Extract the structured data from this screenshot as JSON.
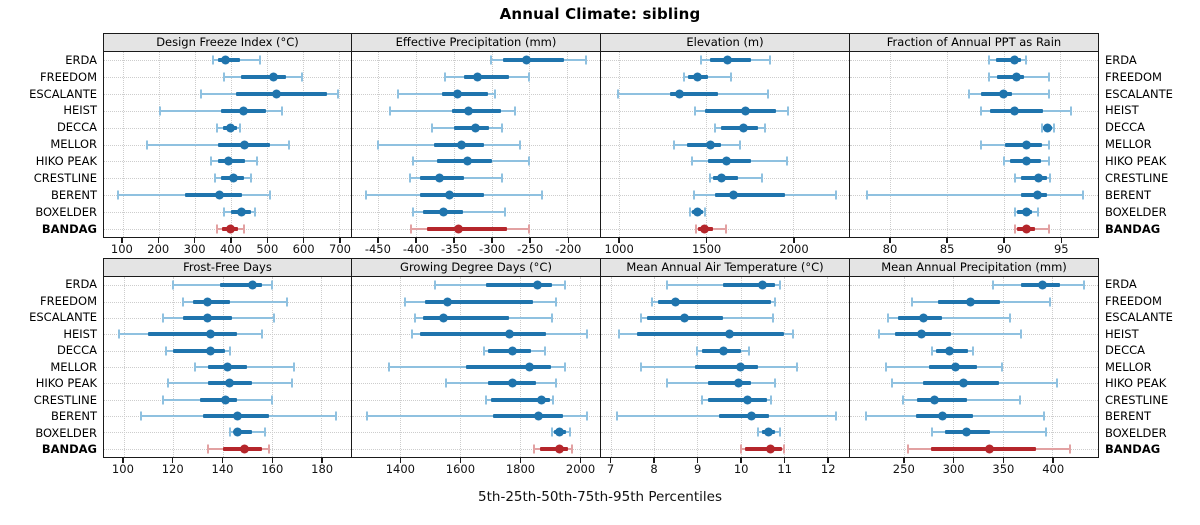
{
  "title": "Annual Climate: sibling",
  "caption": "5th-25th-50th-75th-95th Percentiles",
  "sites": [
    "ERDA",
    "FREEDOM",
    "ESCALANTE",
    "HEIST",
    "DECCA",
    "MELLOR",
    "HIKO PEAK",
    "CRESTLINE",
    "BERENT",
    "BOXELDER",
    "BANDAG"
  ],
  "highlight_site": "BANDAG",
  "colors": {
    "series_blue": "#1f74ad",
    "series_blue_light": "#8fc1e0",
    "highlight_red": "#b5262b",
    "highlight_red_light": "#e2a1a2",
    "grid": "#cdcdcd",
    "strip_bg": "#e4e4e4",
    "panel_border": "#1a1a1a"
  },
  "chart_data": {
    "type": "dot-interval",
    "subtype": "trellis 2x4, horizontal percentile intervals per site",
    "percentile_levels": [
      5,
      25,
      50,
      75,
      95
    ],
    "legend_position": "none",
    "grid": "dotted",
    "panels": [
      {
        "id": "design-freeze-index",
        "title": "Design Freeze Index (°C)",
        "row": "top",
        "xlim": [
          48,
          733
        ],
        "ticks": [
          100,
          200,
          300,
          400,
          500,
          600,
          700
        ],
        "values": [
          [
            350,
            364,
            385,
            424,
            481
          ],
          [
            381,
            428,
            518,
            554,
            596
          ],
          [
            318,
            415,
            527,
            667,
            696
          ],
          [
            204,
            373,
            435,
            497,
            541
          ],
          [
            360,
            378,
            398,
            416,
            426
          ],
          [
            167,
            364,
            438,
            508,
            561
          ],
          [
            345,
            365,
            392,
            438,
            472
          ],
          [
            357,
            372,
            408,
            436,
            456
          ],
          [
            87,
            273,
            369,
            430,
            508
          ],
          [
            380,
            400,
            428,
            455,
            467
          ],
          [
            362,
            375,
            399,
            421,
            436
          ]
        ]
      },
      {
        "id": "effective-precipitation",
        "title": "Effective Precipitation (mm)",
        "row": "top",
        "xlim": [
          -484,
          -157
        ],
        "ticks": [
          -450,
          -400,
          -350,
          -300,
          -250,
          -200
        ],
        "values": [
          [
            -301,
            -285,
            -254,
            -205,
            -175
          ],
          [
            -361,
            -336,
            -319,
            -277,
            -250
          ],
          [
            -423,
            -365,
            -345,
            -305,
            -296
          ],
          [
            -434,
            -352,
            -330,
            -288,
            -269
          ],
          [
            -378,
            -350,
            -321,
            -303,
            -286
          ],
          [
            -450,
            -376,
            -339,
            -310,
            -263
          ],
          [
            -403,
            -372,
            -332,
            -299,
            -250
          ],
          [
            -407,
            -394,
            -369,
            -336,
            -286
          ],
          [
            -466,
            -394,
            -356,
            -310,
            -233
          ],
          [
            -403,
            -391,
            -364,
            -338,
            -282
          ],
          [
            -406,
            -385,
            -343,
            -279,
            -250
          ]
        ]
      },
      {
        "id": "elevation",
        "title": "Elevation (m)",
        "row": "top",
        "xlim": [
          896,
          2320
        ],
        "ticks": [
          1000,
          1500,
          2000
        ],
        "values": [
          [
            1471,
            1523,
            1625,
            1760,
            1867
          ],
          [
            1371,
            1395,
            1452,
            1510,
            1641
          ],
          [
            992,
            1295,
            1346,
            1568,
            1853
          ],
          [
            1436,
            1495,
            1728,
            1900,
            1969
          ],
          [
            1548,
            1587,
            1712,
            1799,
            1838
          ],
          [
            1317,
            1390,
            1525,
            1587,
            1693
          ],
          [
            1419,
            1510,
            1616,
            1760,
            1963
          ],
          [
            1519,
            1539,
            1587,
            1683,
            1818
          ],
          [
            1432,
            1550,
            1654,
            1950,
            2243
          ],
          [
            1405,
            1420,
            1448,
            1480,
            1495
          ],
          [
            1442,
            1452,
            1490,
            1539,
            1616
          ]
        ]
      },
      {
        "id": "fraction-ppt-rain",
        "title": "Fraction of Annual PPT as Rain",
        "row": "top",
        "xlim": [
          76.5,
          98.3
        ],
        "ticks": [
          80,
          85,
          90,
          95
        ],
        "values": [
          [
            88.7,
            89.3,
            91.0,
            91.5,
            92.0
          ],
          [
            88.7,
            89.4,
            91.1,
            91.8,
            94.0
          ],
          [
            87.0,
            88.0,
            90.0,
            90.7,
            94.0
          ],
          [
            88.0,
            88.8,
            91.0,
            93.5,
            95.9
          ],
          [
            93.4,
            93.5,
            93.9,
            94.3,
            94.4
          ],
          [
            88.0,
            90.1,
            92.0,
            93.4,
            94.0
          ],
          [
            90.0,
            90.6,
            92.0,
            93.3,
            94.0
          ],
          [
            91.0,
            91.5,
            93.1,
            93.8,
            94.1
          ],
          [
            78.0,
            91.5,
            93.0,
            93.8,
            97.0
          ],
          [
            91.0,
            91.2,
            92.0,
            92.5,
            93.0
          ],
          [
            91.0,
            91.2,
            92.0,
            92.8,
            94.0
          ]
        ]
      },
      {
        "id": "frost-free-days",
        "title": "Frost-Free Days",
        "row": "bottom",
        "xlim": [
          92,
          192
        ],
        "ticks": [
          100,
          120,
          140,
          160,
          180
        ],
        "values": [
          [
            120,
            139,
            152,
            156,
            160
          ],
          [
            124,
            128,
            134,
            143,
            166
          ],
          [
            116,
            124,
            134,
            144,
            161
          ],
          [
            98,
            110,
            135,
            146,
            156
          ],
          [
            117,
            120,
            135,
            141,
            143
          ],
          [
            129,
            134,
            142,
            150,
            169
          ],
          [
            118,
            134,
            143,
            152,
            168
          ],
          [
            116,
            131,
            141,
            146,
            160
          ],
          [
            107,
            132,
            146,
            159,
            186
          ],
          [
            143,
            145,
            146,
            152,
            157
          ],
          [
            134,
            140,
            149,
            156,
            159
          ]
        ]
      },
      {
        "id": "growing-degree-days",
        "title": "Growing Degree Days (°C)",
        "row": "bottom",
        "xlim": [
          1239,
          2068
        ],
        "ticks": [
          1400,
          1600,
          1800,
          2000
        ],
        "values": [
          [
            1516,
            1687,
            1858,
            1906,
            1950
          ],
          [
            1417,
            1484,
            1557,
            1844,
            1922
          ],
          [
            1448,
            1475,
            1544,
            1765,
            1909
          ],
          [
            1439,
            1467,
            1765,
            1889,
            2026
          ],
          [
            1681,
            1692,
            1776,
            1838,
            1883
          ],
          [
            1363,
            1620,
            1833,
            1905,
            1950
          ],
          [
            1554,
            1692,
            1776,
            1855,
            1922
          ],
          [
            1687,
            1703,
            1872,
            1900,
            1911
          ],
          [
            1288,
            1710,
            1861,
            1945,
            2026
          ],
          [
            1906,
            1913,
            1934,
            1956,
            1967
          ],
          [
            1849,
            1866,
            1931,
            1960,
            1976
          ]
        ]
      },
      {
        "id": "mean-annual-air-temperature",
        "title": "Mean Annual Air Temperature (°C)",
        "row": "bottom",
        "xlim": [
          6.78,
          12.5
        ],
        "ticks": [
          7,
          8,
          9,
          10,
          11,
          12
        ],
        "values": [
          [
            8.3,
            9.6,
            10.5,
            10.8,
            10.9
          ],
          [
            7.95,
            8.1,
            8.5,
            10.7,
            10.8
          ],
          [
            7.7,
            7.85,
            8.7,
            9.6,
            10.75
          ],
          [
            7.2,
            7.6,
            9.75,
            11.0,
            11.2
          ],
          [
            9.0,
            9.1,
            9.6,
            10.0,
            10.2
          ],
          [
            7.7,
            8.95,
            10.0,
            10.4,
            11.3
          ],
          [
            8.3,
            9.25,
            9.95,
            10.25,
            10.8
          ],
          [
            9.1,
            9.25,
            10.15,
            10.6,
            10.7
          ],
          [
            7.15,
            9.5,
            10.25,
            10.65,
            12.2
          ],
          [
            10.4,
            10.5,
            10.65,
            10.8,
            10.9
          ],
          [
            10.0,
            10.1,
            10.7,
            10.95,
            11.0
          ]
        ]
      },
      {
        "id": "mean-annual-precipitation",
        "title": "Mean Annual Precipitation (mm)",
        "row": "bottom",
        "xlim": [
          196,
          446
        ],
        "ticks": [
          250,
          300,
          350,
          400
        ],
        "values": [
          [
            340,
            368,
            390,
            408,
            432
          ],
          [
            258,
            285,
            317,
            347,
            398
          ],
          [
            234,
            244,
            270,
            289,
            357
          ],
          [
            225,
            241,
            268,
            298,
            368
          ],
          [
            279,
            283,
            296,
            315,
            320
          ],
          [
            232,
            276,
            302,
            324,
            349
          ],
          [
            238,
            270,
            310,
            346,
            405
          ],
          [
            249,
            264,
            281,
            314,
            367
          ],
          [
            212,
            263,
            289,
            320,
            392
          ],
          [
            279,
            292,
            313,
            337,
            394
          ],
          [
            254,
            278,
            337,
            383,
            418
          ]
        ]
      }
    ]
  }
}
